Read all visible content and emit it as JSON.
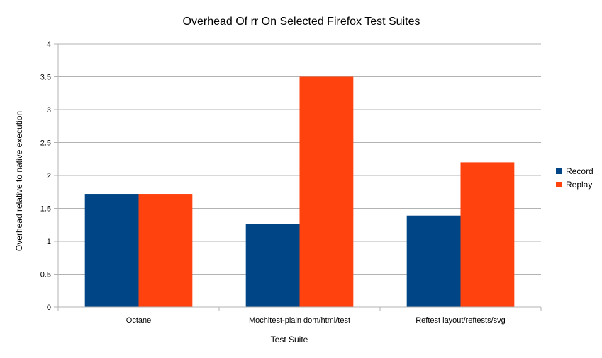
{
  "chart_data": {
    "type": "bar",
    "title": "Overhead Of rr On Selected Firefox Test Suites",
    "xlabel": "Test Suite",
    "ylabel": "Overhead relative to native execution",
    "categories": [
      "Octane",
      "Mochitest-plain dom/html/test",
      "Reftest layout/reftests/svg"
    ],
    "series": [
      {
        "name": "Record",
        "values": [
          1.72,
          1.26,
          1.39
        ],
        "color": "#004586"
      },
      {
        "name": "Replay",
        "values": [
          1.72,
          3.5,
          2.2
        ],
        "color": "#ff420e"
      }
    ],
    "ylim": [
      0,
      4
    ],
    "yticks": [
      "0",
      "0.5",
      "1",
      "1.5",
      "2",
      "2.5",
      "3",
      "3.5",
      "4"
    ],
    "grid": true,
    "legend_position": "right"
  }
}
